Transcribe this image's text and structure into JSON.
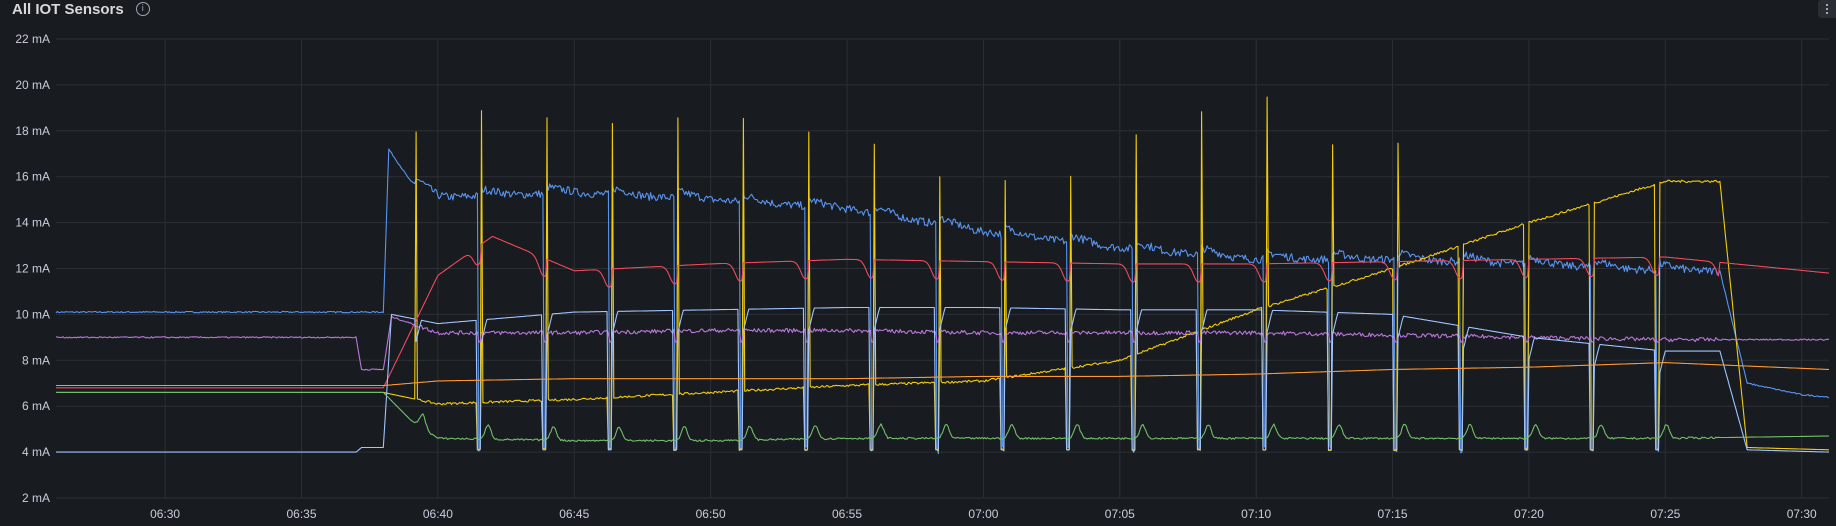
{
  "panel": {
    "title": "All IOT Sensors",
    "info_icon": "info-icon",
    "menu_icon": "kebab-menu-icon"
  },
  "chart_data": {
    "type": "line",
    "title": "All IOT Sensors",
    "y_unit": "mA",
    "ylim": [
      2,
      22
    ],
    "yticks": [
      2,
      4,
      6,
      8,
      10,
      12,
      14,
      16,
      18,
      20,
      22
    ],
    "ytick_labels": [
      "2 mA",
      "4 mA",
      "6 mA",
      "8 mA",
      "10 mA",
      "12 mA",
      "14 mA",
      "16 mA",
      "18 mA",
      "20 mA",
      "22 mA"
    ],
    "xlim": [
      "06:26",
      "07:31"
    ],
    "xticks": [
      "06:30",
      "06:35",
      "06:40",
      "06:45",
      "06:50",
      "06:55",
      "07:00",
      "07:05",
      "07:10",
      "07:15",
      "07:20",
      "07:25",
      "07:30"
    ],
    "grid": true,
    "legend": "none",
    "sensor_start": "06:38",
    "cycle_minutes": 2.4,
    "series": [
      {
        "color": "#5794f2",
        "baseline": 10.1,
        "points": [
          [
            "06:26",
            10.1
          ],
          [
            "06:38",
            10.1
          ],
          [
            "06:38.2",
            17.2
          ],
          [
            "06:39",
            15.8
          ],
          [
            "06:40",
            15.1
          ],
          [
            "06:45",
            15.3
          ],
          [
            "06:50",
            15.0
          ],
          [
            "06:55",
            14.6
          ],
          [
            "07:00",
            13.6
          ],
          [
            "07:05",
            12.9
          ],
          [
            "07:10",
            12.4
          ],
          [
            "07:15",
            12.4
          ],
          [
            "07:20",
            12.2
          ],
          [
            "07:25",
            11.9
          ],
          [
            "07:27",
            11.9
          ],
          [
            "07:28",
            7.0
          ],
          [
            "07:30",
            6.5
          ],
          [
            "07:31",
            6.4
          ]
        ]
      },
      {
        "color": "#f2cc0c",
        "baseline": 6.6,
        "points": [
          [
            "06:26",
            6.6
          ],
          [
            "06:38",
            6.6
          ],
          [
            "06:40",
            6.1
          ],
          [
            "06:45",
            6.3
          ],
          [
            "06:50",
            6.6
          ],
          [
            "06:55",
            6.9
          ],
          [
            "07:00",
            7.1
          ],
          [
            "07:05",
            8.0
          ],
          [
            "07:10",
            10.2
          ],
          [
            "07:15",
            12.0
          ],
          [
            "07:20",
            14.0
          ],
          [
            "07:25",
            15.8
          ],
          [
            "07:27",
            15.8
          ],
          [
            "07:28",
            4.2
          ],
          [
            "07:31",
            4.1
          ]
        ],
        "spikes_to": [
          17.9,
          18.9,
          18.6,
          18.3,
          18.6,
          18.5,
          17.9,
          17.4,
          16.0,
          15.8,
          16.0,
          17.8,
          18.8,
          19.5,
          17.4,
          17.5
        ]
      },
      {
        "color": "#f2495c",
        "baseline": 6.8,
        "points": [
          [
            "06:26",
            6.8
          ],
          [
            "06:38",
            6.8
          ],
          [
            "06:40",
            11.7
          ],
          [
            "06:42",
            13.4
          ],
          [
            "06:45",
            11.9
          ],
          [
            "06:50",
            12.2
          ],
          [
            "06:55",
            12.4
          ],
          [
            "07:00",
            12.3
          ],
          [
            "07:05",
            12.2
          ],
          [
            "07:10",
            12.2
          ],
          [
            "07:15",
            12.3
          ],
          [
            "07:20",
            12.4
          ],
          [
            "07:25",
            12.5
          ],
          [
            "07:31",
            11.8
          ]
        ]
      },
      {
        "color": "#b877d9",
        "baseline": 9.0,
        "points": [
          [
            "06:26",
            9.0
          ],
          [
            "06:37",
            9.0
          ],
          [
            "06:37.2",
            7.6
          ],
          [
            "06:38",
            7.6
          ],
          [
            "06:38.3",
            9.9
          ],
          [
            "06:40",
            9.2
          ],
          [
            "06:45",
            9.2
          ],
          [
            "06:50",
            9.3
          ],
          [
            "06:55",
            9.3
          ],
          [
            "07:00",
            9.2
          ],
          [
            "07:05",
            9.2
          ],
          [
            "07:10",
            9.2
          ],
          [
            "07:15",
            9.1
          ],
          [
            "07:20",
            9.0
          ],
          [
            "07:25",
            8.9
          ],
          [
            "07:31",
            8.9
          ]
        ]
      },
      {
        "color": "#a0c4ff",
        "baseline": 4.0,
        "points": [
          [
            "06:26",
            4.0
          ],
          [
            "06:37",
            4.0
          ],
          [
            "06:37.2",
            4.2
          ],
          [
            "06:38",
            4.2
          ],
          [
            "06:38.3",
            10.0
          ],
          [
            "06:40",
            9.6
          ],
          [
            "06:45",
            10.1
          ],
          [
            "06:50",
            10.2
          ],
          [
            "06:55",
            10.3
          ],
          [
            "07:00",
            10.3
          ],
          [
            "07:05",
            10.2
          ],
          [
            "07:10",
            10.2
          ],
          [
            "07:15",
            10.0
          ],
          [
            "07:20",
            9.0
          ],
          [
            "07:25",
            8.4
          ],
          [
            "07:27",
            8.4
          ],
          [
            "07:28",
            4.1
          ],
          [
            "07:31",
            4.0
          ]
        ]
      },
      {
        "color": "#73bf69",
        "baseline": 6.6,
        "points": [
          [
            "06:26",
            6.6
          ],
          [
            "06:38",
            6.6
          ],
          [
            "06:39",
            5.4
          ],
          [
            "06:40",
            4.6
          ],
          [
            "06:45",
            4.5
          ],
          [
            "06:50",
            4.5
          ],
          [
            "06:55",
            4.6
          ],
          [
            "07:00",
            4.6
          ],
          [
            "07:05",
            4.6
          ],
          [
            "07:10",
            4.6
          ],
          [
            "07:15",
            4.6
          ],
          [
            "07:20",
            4.6
          ],
          [
            "07:25",
            4.6
          ],
          [
            "07:31",
            4.7
          ]
        ]
      },
      {
        "color": "#ff9830",
        "baseline": 6.9,
        "points": [
          [
            "06:26",
            6.9
          ],
          [
            "06:38",
            6.9
          ],
          [
            "06:40",
            7.1
          ],
          [
            "06:45",
            7.2
          ],
          [
            "06:50",
            7.2
          ],
          [
            "06:55",
            7.2
          ],
          [
            "07:00",
            7.3
          ],
          [
            "07:05",
            7.3
          ],
          [
            "07:10",
            7.4
          ],
          [
            "07:15",
            7.6
          ],
          [
            "07:20",
            7.7
          ],
          [
            "07:25",
            7.9
          ],
          [
            "07:31",
            7.6
          ]
        ]
      }
    ]
  }
}
